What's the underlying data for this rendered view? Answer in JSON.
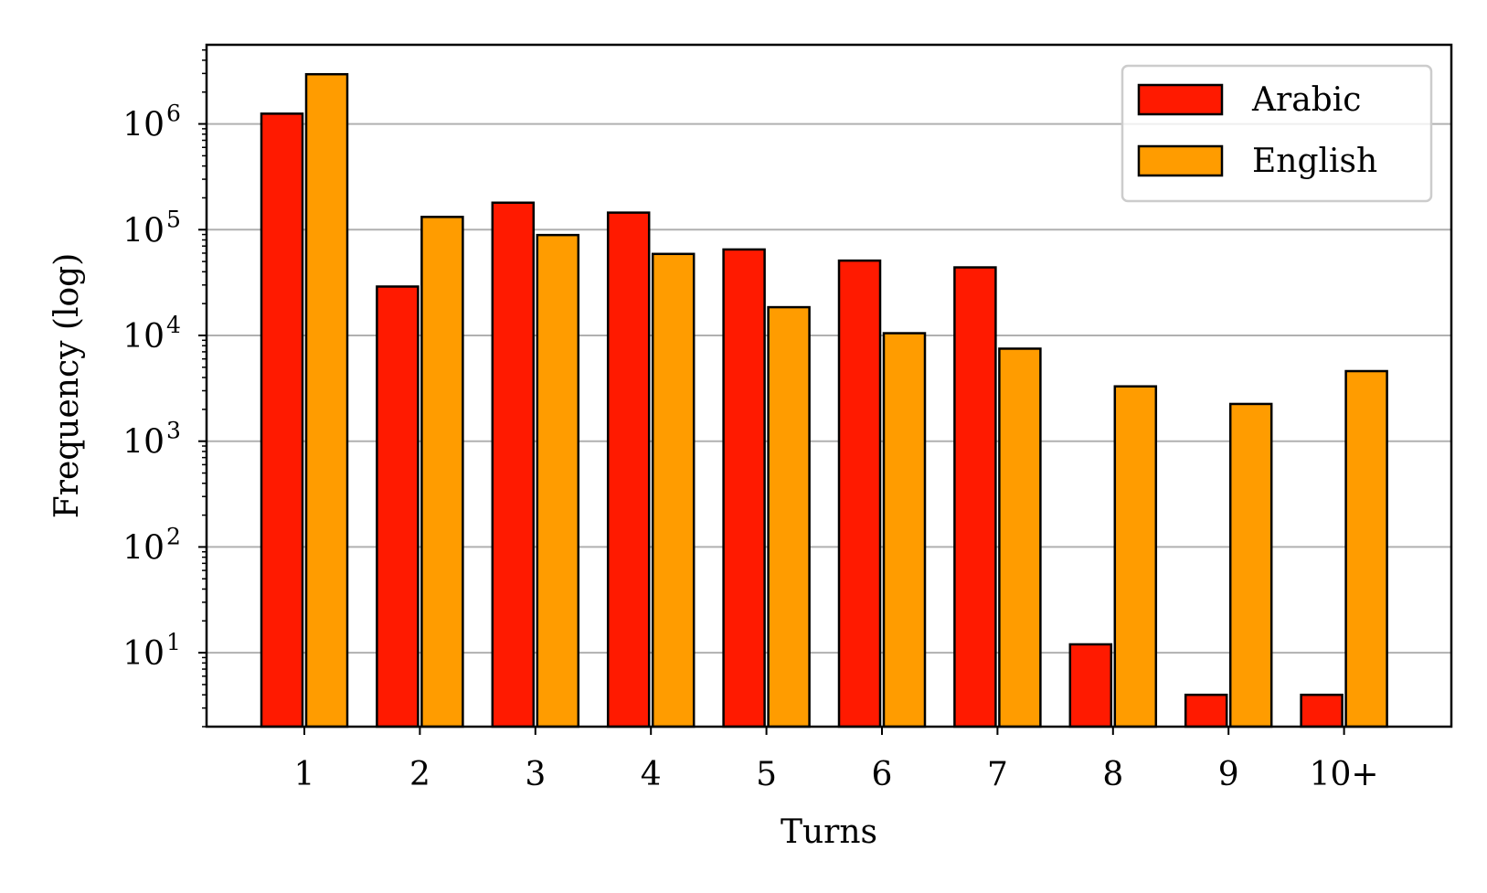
{
  "chart_data": {
    "type": "bar",
    "xlabel": "Turns",
    "ylabel": "Frequency (log)",
    "yscale": "log",
    "ylim": [
      2,
      5600000
    ],
    "grid": "y-major",
    "legend_position": "top-right",
    "categories": [
      "1",
      "2",
      "3",
      "4",
      "5",
      "6",
      "7",
      "8",
      "9",
      "10+"
    ],
    "ytick_labels": [
      "10",
      "10",
      "10",
      "10",
      "10",
      "10"
    ],
    "ytick_exponents": [
      "1",
      "2",
      "3",
      "4",
      "5",
      "6"
    ],
    "ytick_values": [
      10,
      100,
      1000,
      10000,
      100000,
      1000000
    ],
    "series": [
      {
        "name": "Arabic",
        "color": "#ff1a00",
        "values": [
          1250000,
          29000,
          180000,
          145000,
          65000,
          51000,
          44000,
          12,
          4,
          4
        ]
      },
      {
        "name": "English",
        "color": "#ff9c00",
        "values": [
          2950000,
          132000,
          89000,
          59000,
          18500,
          10500,
          7500,
          3300,
          2250,
          4600
        ]
      }
    ]
  }
}
